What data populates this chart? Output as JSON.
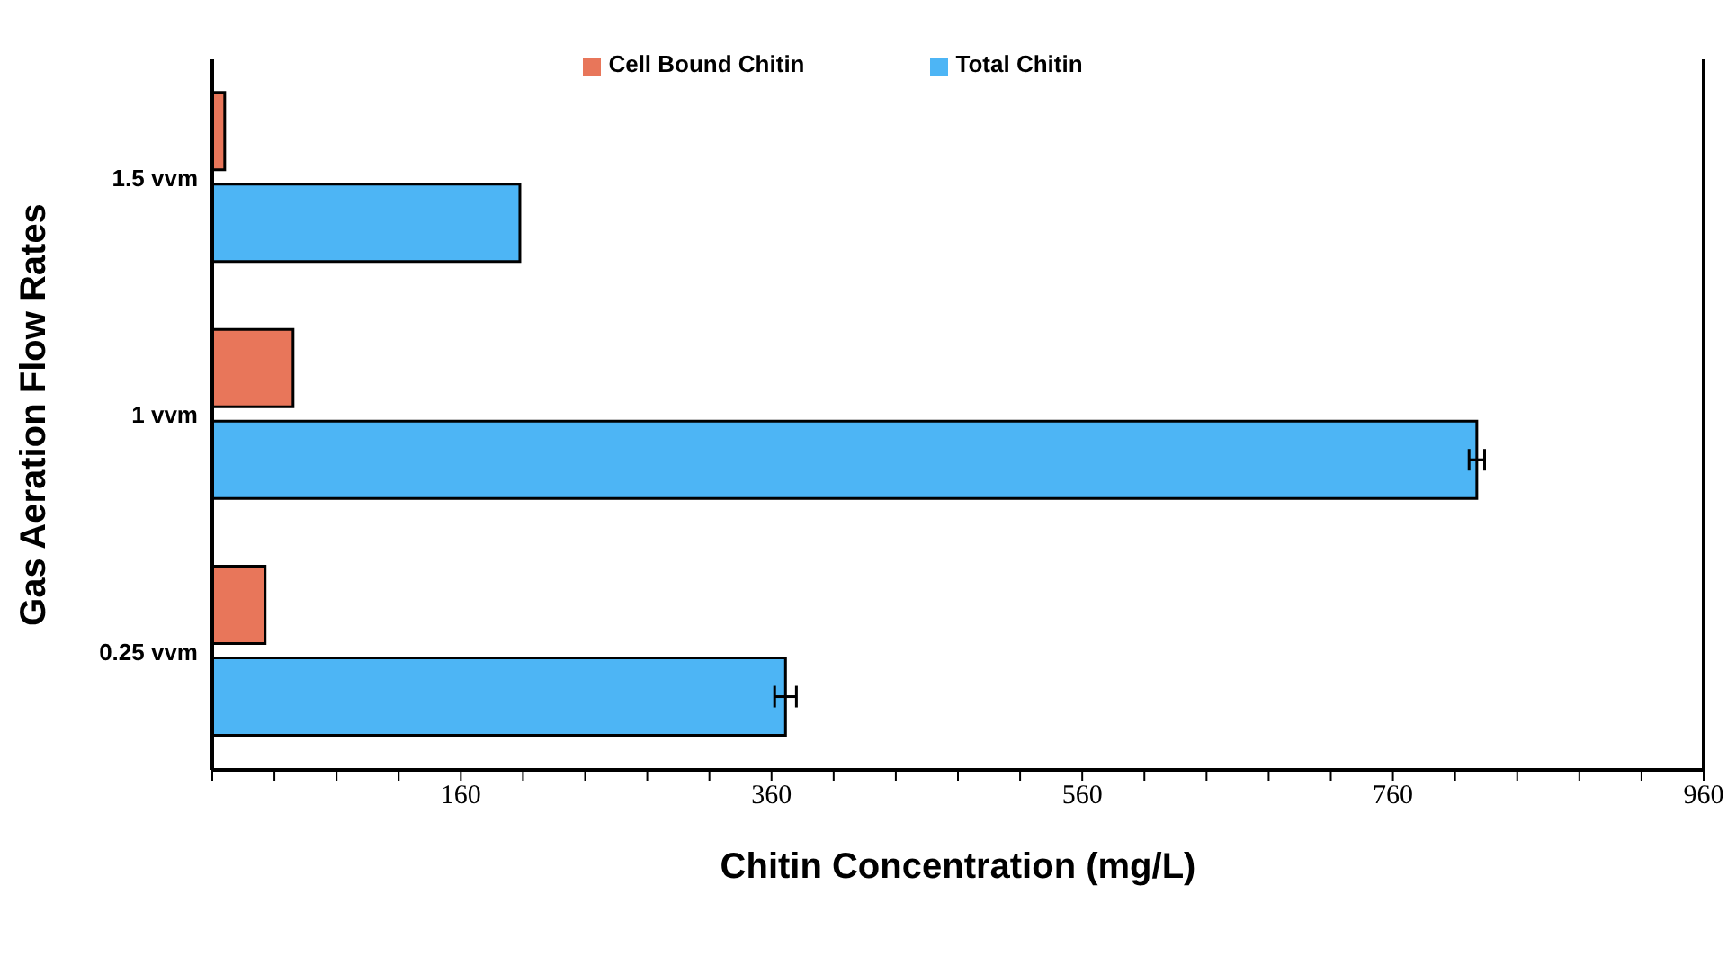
{
  "chart_data": {
    "type": "bar",
    "orientation": "horizontal",
    "xlabel": "Chitin Concentration (mg/L)",
    "ylabel": "Gas Aeration Flow Rates",
    "categories": [
      "1.5 vvm",
      "1 vvm",
      "0.25 vvm"
    ],
    "series": [
      {
        "name": "Cell Bound Chitin",
        "color": "#e8765a",
        "values": [
          8,
          52,
          34
        ]
      },
      {
        "name": "Total Chitin",
        "color": "#4db5f5",
        "values": [
          198,
          814,
          369
        ],
        "errors": [
          null,
          5,
          7
        ]
      }
    ],
    "xlim": [
      0,
      960
    ],
    "xticks": [
      {
        "value": 0,
        "label": null
      },
      {
        "value": 40,
        "label": null
      },
      {
        "value": 80,
        "label": null
      },
      {
        "value": 120,
        "label": null
      },
      160,
      {
        "value": 200,
        "label": null
      },
      {
        "value": 240,
        "label": null
      },
      {
        "value": 280,
        "label": null
      },
      {
        "value": 320,
        "label": null
      },
      360,
      {
        "value": 400,
        "label": null
      },
      {
        "value": 440,
        "label": null
      },
      {
        "value": 480,
        "label": null
      },
      {
        "value": 520,
        "label": null
      },
      560,
      {
        "value": 600,
        "label": null
      },
      {
        "value": 640,
        "label": null
      },
      {
        "value": 680,
        "label": null
      },
      {
        "value": 720,
        "label": null
      },
      760,
      {
        "value": 800,
        "label": null
      },
      {
        "value": 840,
        "label": null
      },
      {
        "value": 880,
        "label": null
      },
      {
        "value": 920,
        "label": null
      },
      960
    ],
    "legend": "top"
  }
}
